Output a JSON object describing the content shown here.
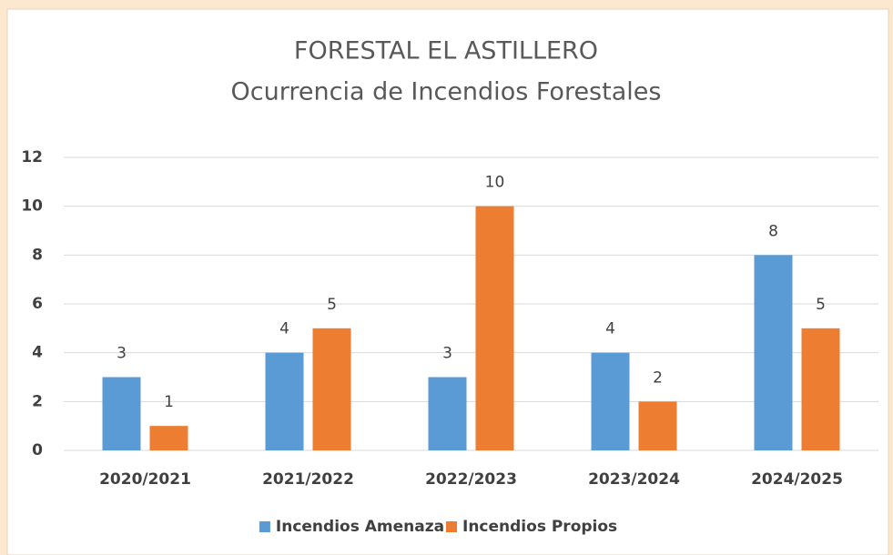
{
  "chart_data": {
    "type": "bar",
    "title": "FORESTAL EL ASTILLERO",
    "subtitle": "Ocurrencia de Incendios Forestales",
    "categories": [
      "2020/2021",
      "2021/2022",
      "2022/2023",
      "2023/2024",
      "2024/2025"
    ],
    "series": [
      {
        "name": "Incendios Amenaza",
        "color": "#5b9bd5",
        "values": [
          3,
          4,
          3,
          4,
          8
        ]
      },
      {
        "name": "Incendios Propios",
        "color": "#ed7d31",
        "values": [
          1,
          5,
          10,
          2,
          5
        ]
      }
    ],
    "ylim": [
      0,
      12
    ],
    "yticks": [
      0,
      2,
      4,
      6,
      8,
      10,
      12
    ],
    "grid": true,
    "legend": "bottom"
  }
}
